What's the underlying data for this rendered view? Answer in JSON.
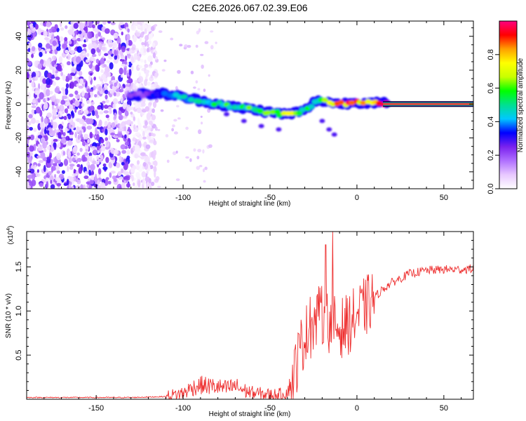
{
  "chart_data": [
    {
      "type": "heatmap",
      "title": "C2E6.2026.067.02.39.E06",
      "xlabel": "Height of straight line (km)",
      "ylabel": "Frequency (Hz)",
      "xlim": [
        -190,
        67
      ],
      "ylim": [
        -50,
        49
      ],
      "xticks": [
        -150,
        -100,
        -50,
        0,
        50
      ],
      "yticks": [
        -40,
        -20,
        0,
        20,
        40
      ],
      "colorbar": {
        "label": "Normalized spectral amplitude",
        "range": [
          0,
          1
        ],
        "ticks": [
          "0.0",
          "0.2",
          "0.4",
          "0.6",
          "0.8"
        ],
        "colors": [
          "#ffffff",
          "#e8c8ff",
          "#b070ff",
          "#7a22ee",
          "#0000ff",
          "#00c8ff",
          "#00e090",
          "#00ff00",
          "#c8ff00",
          "#ffff00",
          "#ffa000",
          "#ff0000",
          "#ff0080"
        ]
      },
      "ridge": {
        "x": [
          -130,
          -120,
          -110,
          -100,
          -90,
          -80,
          -70,
          -60,
          -50,
          -40,
          -30,
          -25,
          -20,
          -10,
          0,
          10,
          20,
          67
        ],
        "freq": [
          5,
          6,
          6,
          4,
          2,
          0,
          -2,
          -3,
          -5,
          -6,
          -4,
          1,
          2,
          0,
          1,
          1,
          0,
          0
        ],
        "peak_amplitude": [
          0.2,
          0.3,
          0.4,
          0.45,
          0.5,
          0.55,
          0.55,
          0.6,
          0.6,
          0.65,
          0.6,
          0.55,
          0.6,
          0.85,
          0.85,
          0.9,
          1.0,
          1.0
        ]
      },
      "noise_region_x": [
        -190,
        -120
      ]
    },
    {
      "type": "line",
      "xlabel": "Height of straight line (km)",
      "ylabel": "SNR (10 * v/v)",
      "yscale_label": "(x10",
      "yscale_exponent": "4",
      "yscale_suffix": ")",
      "xlim": [
        -190,
        67
      ],
      "ylim": [
        0,
        1.9
      ],
      "xticks": [
        -150,
        -100,
        -50,
        0,
        50
      ],
      "yticks": [
        "0.5",
        "1.0",
        "1.5"
      ],
      "ytick_values": [
        0.5,
        1.0,
        1.5
      ],
      "series": [
        {
          "name": "SNR",
          "color": "#ee3030",
          "x": [
            -190,
            -160,
            -130,
            -110,
            -100,
            -95,
            -90,
            -85,
            -80,
            -75,
            -70,
            -65,
            -60,
            -55,
            -50,
            -45,
            -40,
            -36,
            -33,
            -30,
            -25,
            -20,
            -15,
            -10,
            -5,
            0,
            5,
            10,
            15,
            20,
            30,
            40,
            50,
            60,
            67
          ],
          "values": [
            0.02,
            0.02,
            0.02,
            0.03,
            0.07,
            0.13,
            0.16,
            0.15,
            0.14,
            0.12,
            0.15,
            0.1,
            0.07,
            0.06,
            0.05,
            0.05,
            0.08,
            0.3,
            0.55,
            0.72,
            0.85,
            0.95,
            0.85,
            0.8,
            0.85,
            0.95,
            1.05,
            1.15,
            1.25,
            1.32,
            1.42,
            1.46,
            1.47,
            1.47,
            1.48
          ]
        }
      ],
      "spikes": [
        {
          "x": -27,
          "value": 1.16
        },
        {
          "x": -22,
          "value": 1.28
        },
        {
          "x": -18,
          "value": 1.75
        },
        {
          "x": -14,
          "value": 1.9
        }
      ]
    }
  ]
}
